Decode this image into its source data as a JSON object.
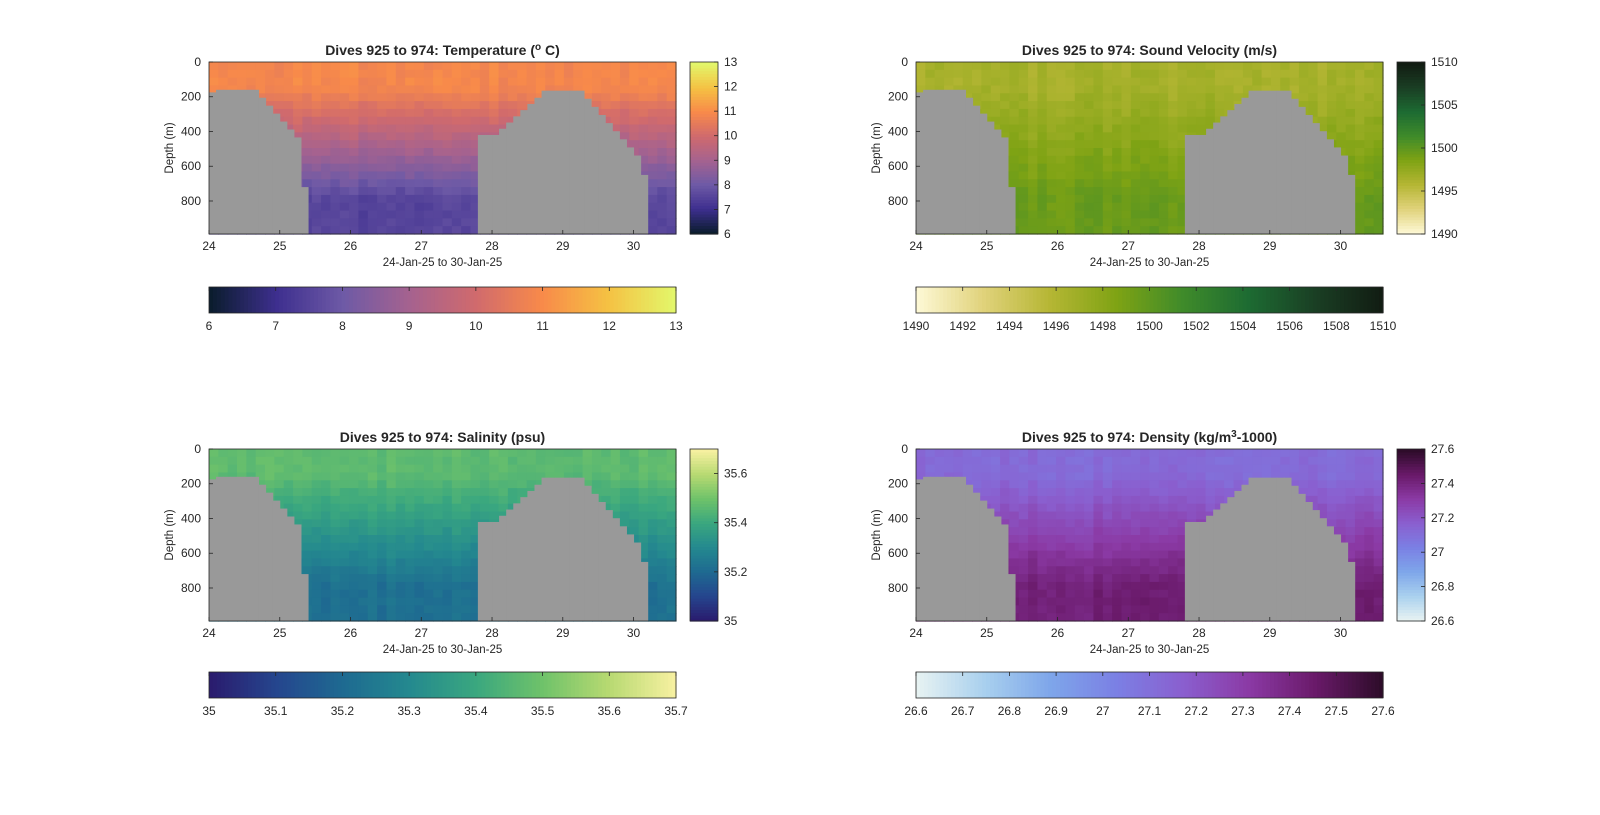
{
  "chart_data": [
    {
      "type": "heatmap",
      "title": "Dives 925 to 974: Temperature (",
      "title_sup": "o",
      "title_end": " C)",
      "xlabel": "24-Jan-25 to 30-Jan-25",
      "ylabel": "Depth (m)",
      "xlim": [
        24,
        30.6
      ],
      "ylim": [
        990,
        0
      ],
      "xticks": [
        "24",
        "25",
        "26",
        "27",
        "28",
        "29",
        "30"
      ],
      "yticks": [
        "0",
        "200",
        "400",
        "600",
        "800"
      ],
      "colorbar_right": {
        "range": [
          6,
          13
        ],
        "ticks": [
          "6",
          "7",
          "8",
          "9",
          "10",
          "11",
          "12",
          "13"
        ]
      },
      "colorbar_bottom": {
        "range": [
          6,
          13
        ],
        "ticks": [
          "6",
          "7",
          "8",
          "9",
          "10",
          "11",
          "12",
          "13"
        ]
      },
      "colormap": [
        "#0b1d2e",
        "#3e2f8f",
        "#6e5aa6",
        "#a5628f",
        "#d06a6d",
        "#f88a4a",
        "#f5c143",
        "#e3f66a"
      ],
      "mask_color": "#999999",
      "surface_value": 10.9,
      "deep_value": 7.5
    },
    {
      "type": "heatmap",
      "title": "Dives 925 to 974: Sound Velocity (m/s)",
      "xlabel": "24-Jan-25 to 30-Jan-25",
      "ylabel": "Depth (m)",
      "xlim": [
        24,
        30.6
      ],
      "ylim": [
        990,
        0
      ],
      "xticks": [
        "24",
        "25",
        "26",
        "27",
        "28",
        "29",
        "30"
      ],
      "yticks": [
        "0",
        "200",
        "400",
        "600",
        "800"
      ],
      "colorbar_right": {
        "range": [
          1490,
          1510
        ],
        "ticks": [
          "1490",
          "1495",
          "1500",
          "1505",
          "1510"
        ]
      },
      "colorbar_bottom": {
        "range": [
          1490,
          1510
        ],
        "ticks": [
          "1490",
          "1492",
          "1494",
          "1496",
          "1498",
          "1500",
          "1502",
          "1504",
          "1506",
          "1508",
          "1510"
        ]
      },
      "colormap": [
        "#fdf8d4",
        "#e0d27a",
        "#b5b634",
        "#7fa314",
        "#3f8b2a",
        "#1d6b32",
        "#1a3f24",
        "#121d13"
      ],
      "mask_color": "#999999",
      "surface_value": 1496.5,
      "deep_value": 1499.5
    },
    {
      "type": "heatmap",
      "title": "Dives 925 to 974: Salinity (psu)",
      "xlabel": "24-Jan-25 to 30-Jan-25",
      "ylabel": "Depth (m)",
      "xlim": [
        24,
        30.6
      ],
      "ylim": [
        990,
        0
      ],
      "xticks": [
        "24",
        "25",
        "26",
        "27",
        "28",
        "29",
        "30"
      ],
      "yticks": [
        "0",
        "200",
        "400",
        "600",
        "800"
      ],
      "colorbar_right": {
        "range": [
          35,
          35.7
        ],
        "ticks": [
          "35",
          "35.2",
          "35.4",
          "35.6"
        ]
      },
      "colorbar_bottom": {
        "range": [
          35,
          35.7
        ],
        "ticks": [
          "35",
          "35.1",
          "35.2",
          "35.3",
          "35.4",
          "35.5",
          "35.6",
          "35.7"
        ]
      },
      "colormap": [
        "#2a1c6e",
        "#25468e",
        "#1e6a91",
        "#24898f",
        "#3aa77f",
        "#6ec26a",
        "#b6d971",
        "#f6f0a0"
      ],
      "mask_color": "#999999",
      "surface_value": 35.47,
      "deep_value": 35.22
    },
    {
      "type": "heatmap",
      "title": "Dives 925 to 974: Density (kg/m",
      "title_sup": "3",
      "title_end": "-1000)",
      "xlabel": "24-Jan-25 to 30-Jan-25",
      "ylabel": "Depth (m)",
      "xlim": [
        24,
        30.6
      ],
      "ylim": [
        990,
        0
      ],
      "xticks": [
        "24",
        "25",
        "26",
        "27",
        "28",
        "29",
        "30"
      ],
      "yticks": [
        "0",
        "200",
        "400",
        "600",
        "800"
      ],
      "colorbar_right": {
        "range": [
          26.6,
          27.6
        ],
        "ticks": [
          "26.6",
          "26.8",
          "27",
          "27.2",
          "27.4",
          "27.6"
        ]
      },
      "colorbar_bottom": {
        "range": [
          26.6,
          27.6
        ],
        "ticks": [
          "26.6",
          "26.7",
          "26.8",
          "26.9",
          "27",
          "27.1",
          "27.2",
          "27.3",
          "27.4",
          "27.5",
          "27.6"
        ]
      },
      "colormap": [
        "#e6f2f2",
        "#a9d0ee",
        "#7ea6ea",
        "#7b80e4",
        "#8a5fcf",
        "#8b3aa5",
        "#6a1a6a",
        "#2e0c2a"
      ],
      "mask_color": "#999999",
      "surface_value": 27.12,
      "deep_value": 27.43
    }
  ]
}
